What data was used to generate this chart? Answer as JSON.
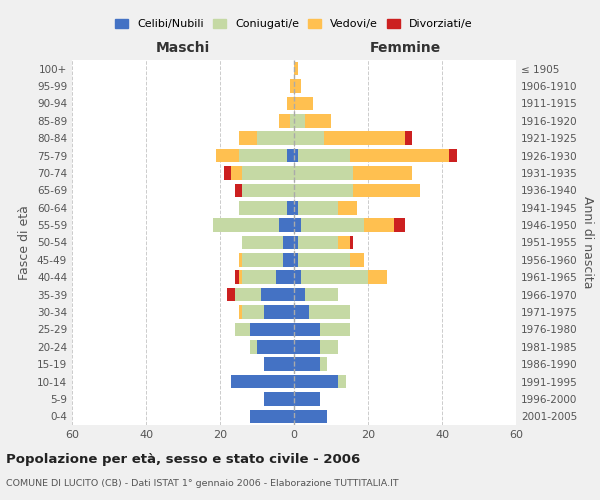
{
  "age_groups": [
    "0-4",
    "5-9",
    "10-14",
    "15-19",
    "20-24",
    "25-29",
    "30-34",
    "35-39",
    "40-44",
    "45-49",
    "50-54",
    "55-59",
    "60-64",
    "65-69",
    "70-74",
    "75-79",
    "80-84",
    "85-89",
    "90-94",
    "95-99",
    "100+"
  ],
  "birth_years": [
    "2001-2005",
    "1996-2000",
    "1991-1995",
    "1986-1990",
    "1981-1985",
    "1976-1980",
    "1971-1975",
    "1966-1970",
    "1961-1965",
    "1956-1960",
    "1951-1955",
    "1946-1950",
    "1941-1945",
    "1936-1940",
    "1931-1935",
    "1926-1930",
    "1921-1925",
    "1916-1920",
    "1911-1915",
    "1906-1910",
    "≤ 1905"
  ],
  "colors": {
    "celibi": "#4472c4",
    "coniugati": "#c5d9a4",
    "vedovi": "#ffc050",
    "divorziati": "#cc2020"
  },
  "maschi": {
    "celibi": [
      12,
      8,
      17,
      8,
      10,
      12,
      8,
      9,
      5,
      3,
      3,
      4,
      2,
      0,
      0,
      2,
      0,
      0,
      0,
      0,
      0
    ],
    "coniugati": [
      0,
      0,
      0,
      0,
      2,
      4,
      6,
      7,
      9,
      11,
      11,
      18,
      13,
      14,
      14,
      13,
      10,
      1,
      0,
      0,
      0
    ],
    "vedovi": [
      0,
      0,
      0,
      0,
      0,
      0,
      1,
      0,
      1,
      1,
      0,
      0,
      0,
      0,
      3,
      6,
      5,
      3,
      2,
      1,
      0
    ],
    "divorziati": [
      0,
      0,
      0,
      0,
      0,
      0,
      0,
      2,
      1,
      0,
      0,
      0,
      0,
      2,
      2,
      0,
      0,
      0,
      0,
      0,
      0
    ]
  },
  "femmine": {
    "celibi": [
      9,
      7,
      12,
      7,
      7,
      7,
      4,
      3,
      2,
      1,
      1,
      2,
      1,
      0,
      0,
      1,
      0,
      0,
      0,
      0,
      0
    ],
    "coniugati": [
      0,
      0,
      2,
      2,
      5,
      8,
      11,
      9,
      18,
      14,
      11,
      17,
      11,
      16,
      16,
      14,
      8,
      3,
      0,
      0,
      0
    ],
    "vedovi": [
      0,
      0,
      0,
      0,
      0,
      0,
      0,
      0,
      5,
      4,
      3,
      8,
      5,
      18,
      16,
      27,
      22,
      7,
      5,
      2,
      1
    ],
    "divorziati": [
      0,
      0,
      0,
      0,
      0,
      0,
      0,
      0,
      0,
      0,
      1,
      3,
      0,
      0,
      0,
      2,
      2,
      0,
      0,
      0,
      0
    ]
  },
  "title": "Popolazione per età, sesso e stato civile - 2006",
  "subtitle": "COMUNE DI LUCITO (CB) - Dati ISTAT 1° gennaio 2006 - Elaborazione TUTTITALIA.IT",
  "xlabel_left": "Maschi",
  "xlabel_right": "Femmine",
  "ylabel_left": "Fasce di età",
  "ylabel_right": "Anni di nascita",
  "legend_labels": [
    "Celibi/Nubili",
    "Coniugati/e",
    "Vedovi/e",
    "Divorziati/e"
  ],
  "xlim": 60,
  "bg_color": "#f0f0f0",
  "plot_bg": "#ffffff"
}
